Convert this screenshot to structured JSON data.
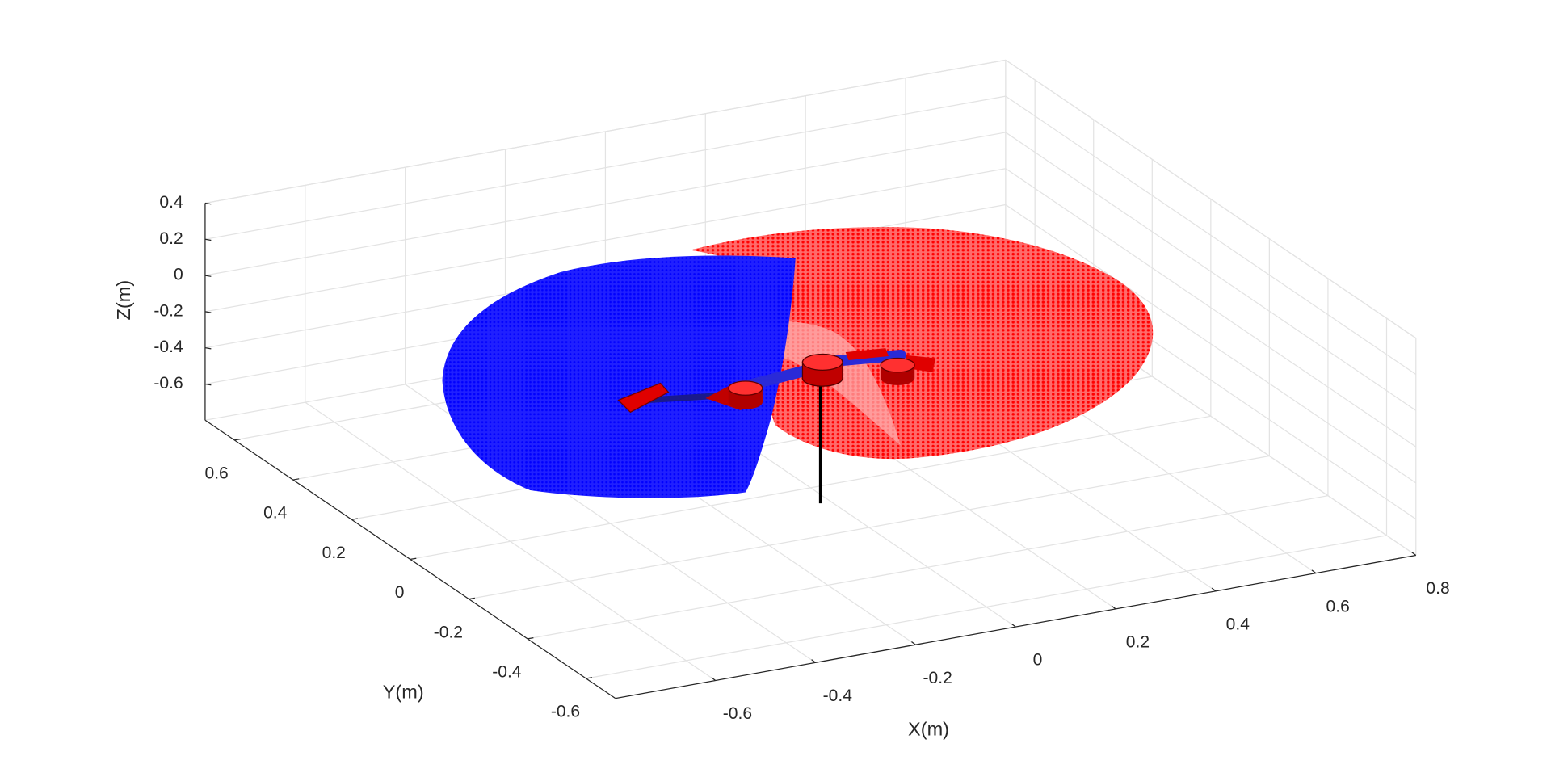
{
  "chart_data": {
    "type": "scatter3d",
    "xlabel": "X(m)",
    "ylabel": "Y(m)",
    "zlabel": "Z(m)",
    "xlim": [
      -0.8,
      0.8
    ],
    "ylim": [
      -0.7,
      0.7
    ],
    "zlim": [
      -0.8,
      0.4
    ],
    "xticks": [
      -0.6,
      -0.4,
      -0.2,
      0,
      0.2,
      0.4,
      0.6,
      0.8
    ],
    "yticks": [
      -0.6,
      -0.4,
      -0.2,
      0,
      0.2,
      0.4,
      0.6
    ],
    "zticks": [
      -0.6,
      -0.4,
      -0.2,
      0,
      0.2,
      0.4
    ],
    "grid": true
  }
}
